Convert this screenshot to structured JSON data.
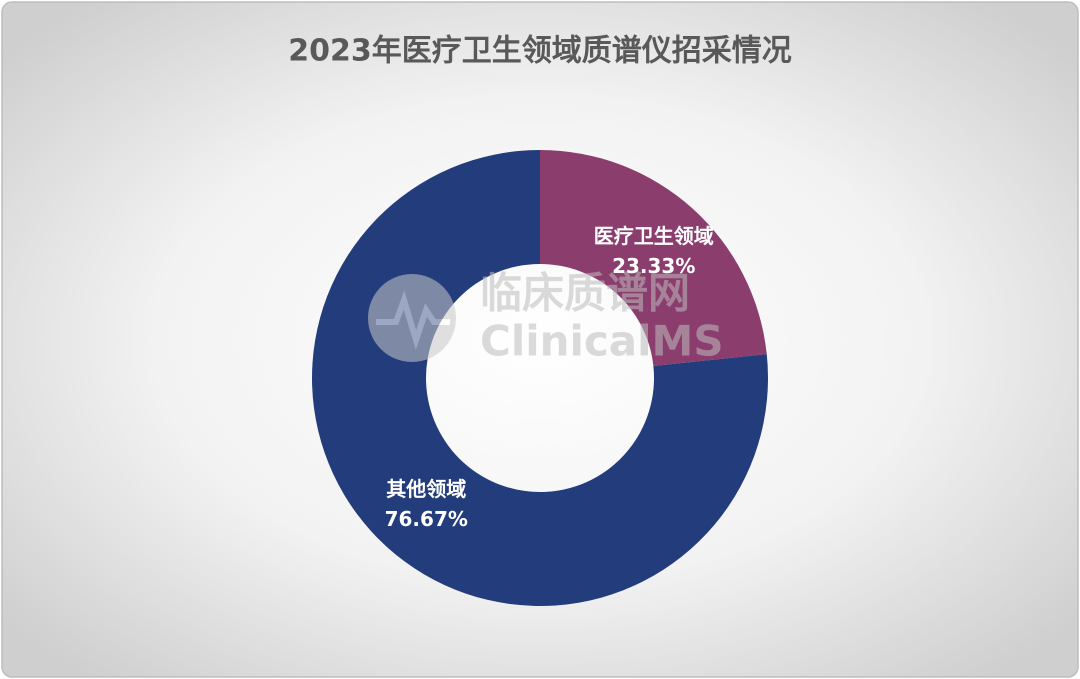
{
  "chart_data": {
    "type": "donut",
    "title": "2023年医疗卫生领域质谱仪招采情况",
    "categories": [
      "医疗卫生领域",
      "其他领域"
    ],
    "values": [
      23.33,
      76.67
    ],
    "value_labels": [
      "23.33%",
      "76.67%"
    ],
    "colors": [
      "#8b3e6e",
      "#233c7b"
    ],
    "watermark": {
      "name": "临床质谱网",
      "brand": "ClinicalMS"
    }
  }
}
